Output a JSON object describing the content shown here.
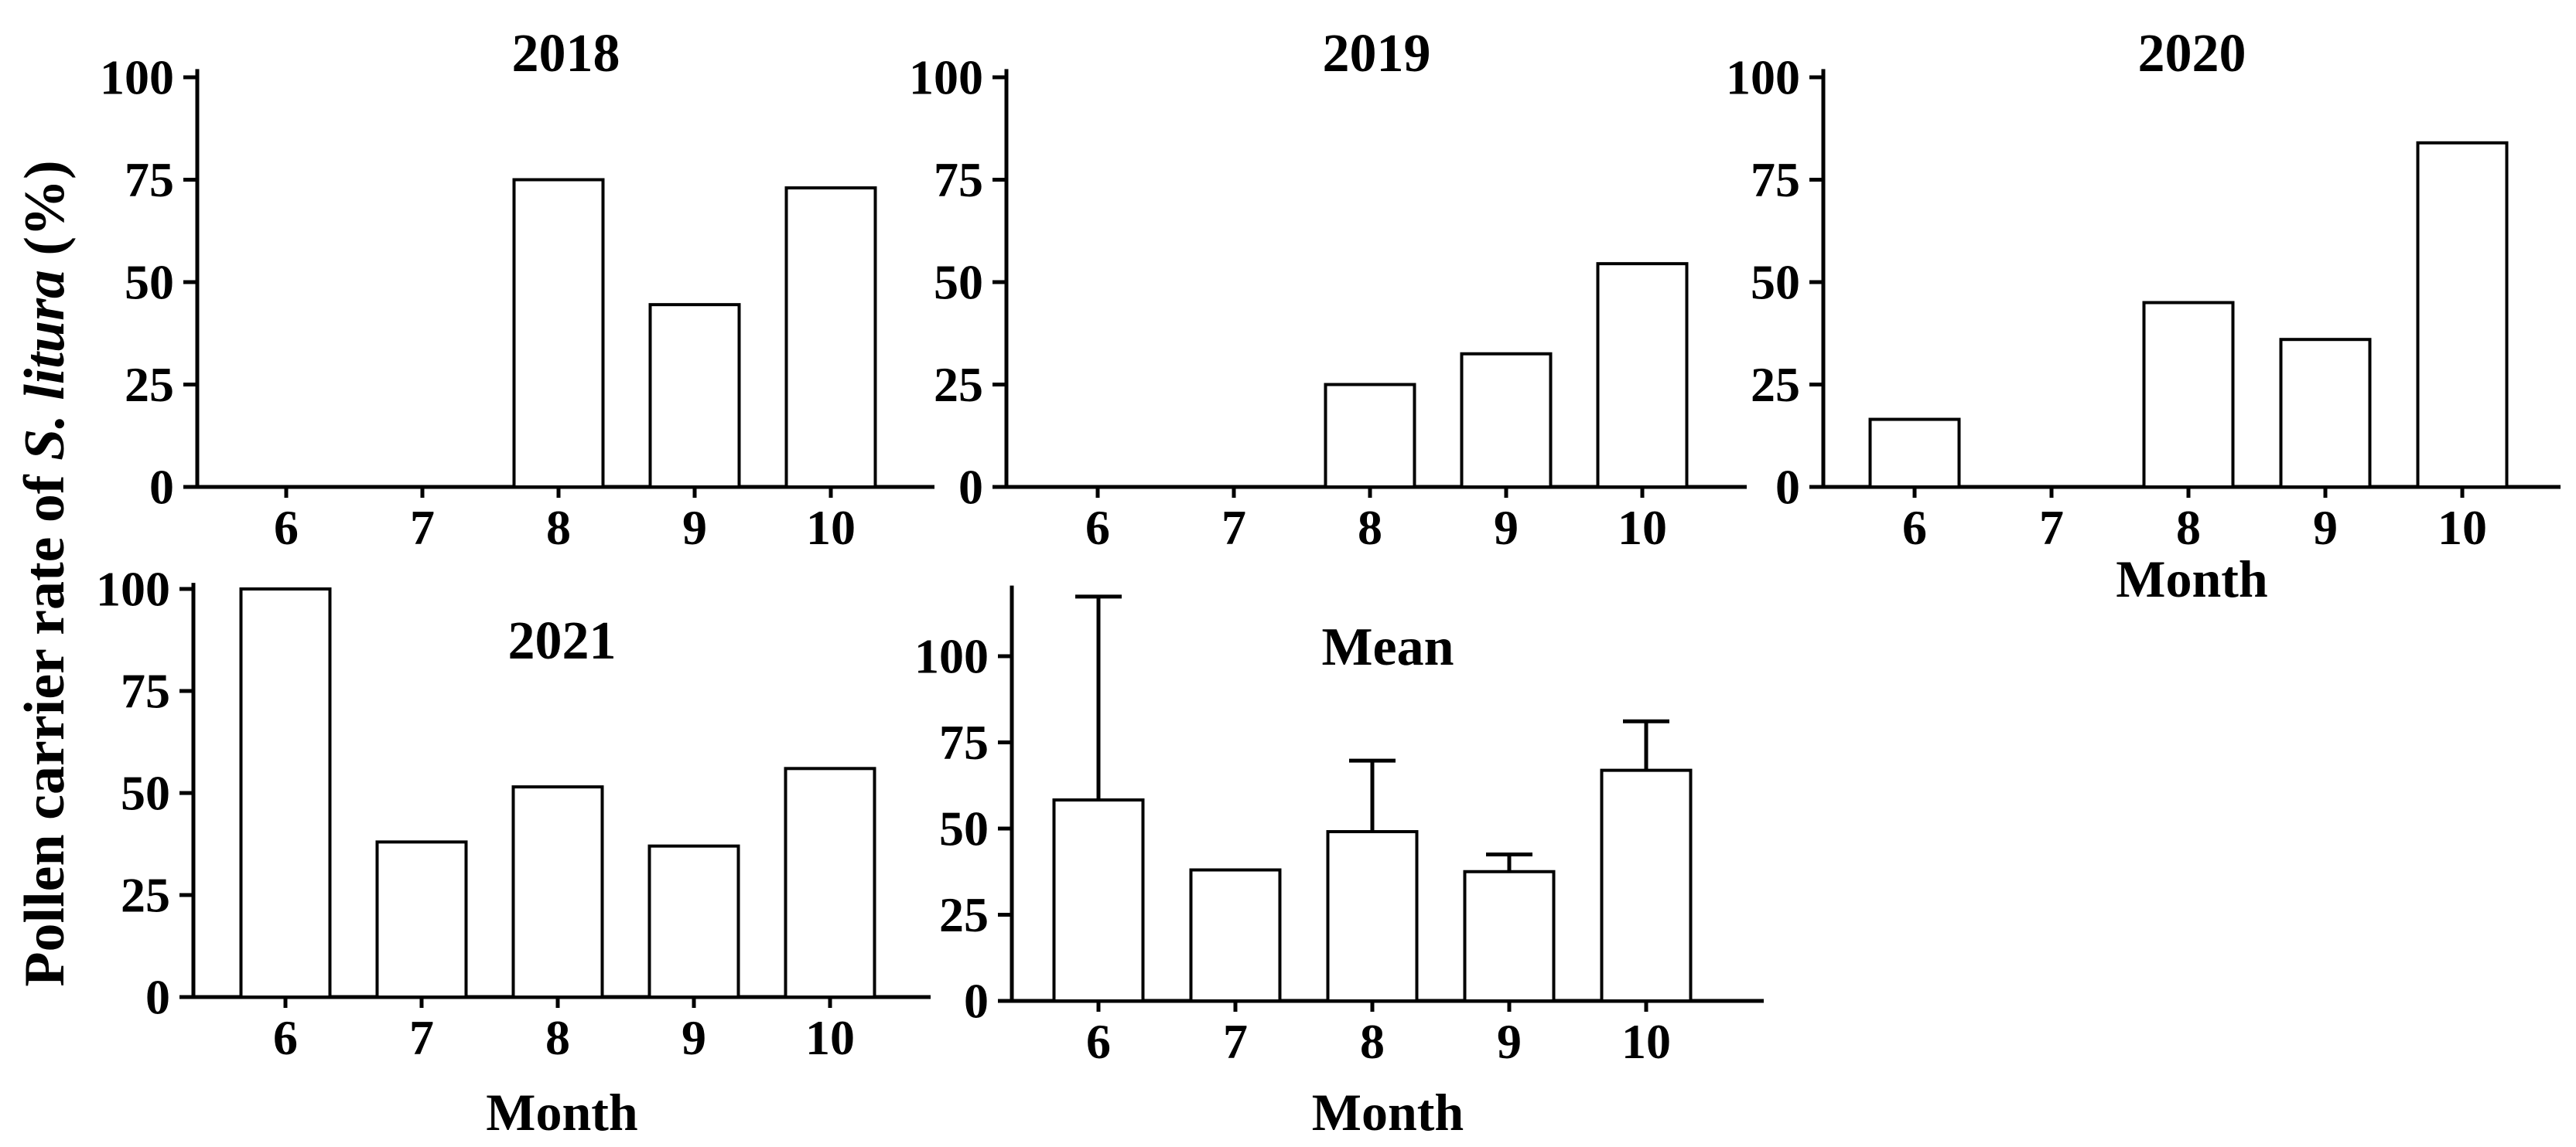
{
  "figure": {
    "ylabel_prefix": "Pollen carrier rate of ",
    "ylabel_italic": "S. litura",
    "ylabel_suffix": " (%)",
    "xlabel": "Month",
    "background_color": "#ffffff",
    "ink_color": "#000000",
    "bar_fill_color": "#ffffff"
  },
  "chart_data": [
    {
      "type": "bar",
      "title": "2018",
      "categories": [
        "6",
        "7",
        "8",
        "9",
        "10"
      ],
      "values": [
        0,
        0,
        75,
        44.5,
        73
      ],
      "errors": [
        0,
        0,
        0,
        0,
        0
      ],
      "yticks": [
        "0",
        "25",
        "50",
        "75",
        "100"
      ],
      "ylim": [
        0,
        100
      ],
      "xlabel": "",
      "ylabel": "Pollen carrier rate of S. litura (%)",
      "grid": "off",
      "legend": "none"
    },
    {
      "type": "bar",
      "title": "2019",
      "categories": [
        "6",
        "7",
        "8",
        "9",
        "10"
      ],
      "values": [
        0,
        0,
        25,
        32.5,
        54.5
      ],
      "errors": [
        0,
        0,
        0,
        0,
        0
      ],
      "yticks": [
        "0",
        "25",
        "50",
        "75",
        "100"
      ],
      "ylim": [
        0,
        100
      ],
      "xlabel": "",
      "ylabel": "Pollen carrier rate of S. litura (%)",
      "grid": "off",
      "legend": "none"
    },
    {
      "type": "bar",
      "title": "2020",
      "categories": [
        "6",
        "7",
        "8",
        "9",
        "10"
      ],
      "values": [
        16.5,
        0,
        45,
        36,
        84
      ],
      "errors": [
        0,
        0,
        0,
        0,
        0
      ],
      "yticks": [
        "0",
        "25",
        "50",
        "75",
        "100"
      ],
      "ylim": [
        0,
        100
      ],
      "xlabel": "Month",
      "ylabel": "Pollen carrier rate of S. litura (%)",
      "grid": "off",
      "legend": "none"
    },
    {
      "type": "bar",
      "title": "2021",
      "categories": [
        "6",
        "7",
        "8",
        "9",
        "10"
      ],
      "values": [
        100,
        38,
        51.5,
        37,
        56
      ],
      "errors": [
        0,
        0,
        0,
        0,
        0
      ],
      "yticks": [
        "0",
        "25",
        "50",
        "75",
        "100"
      ],
      "ylim": [
        0,
        100
      ],
      "xlabel": "Month",
      "ylabel": "Pollen carrier rate of S. litura (%)",
      "grid": "off",
      "legend": "none"
    },
    {
      "type": "bar",
      "title": "Mean",
      "categories": [
        "6",
        "7",
        "8",
        "9",
        "10"
      ],
      "values": [
        58.3,
        38,
        49.1,
        37.5,
        66.9
      ],
      "errors": [
        59,
        0,
        20.6,
        5,
        14.2
      ],
      "yticks": [
        "0",
        "25",
        "50",
        "75",
        "100"
      ],
      "ylim": [
        0,
        120
      ],
      "xlabel": "Month",
      "ylabel": "Pollen carrier rate of S. litura (%)",
      "grid": "off",
      "legend": "none"
    }
  ]
}
